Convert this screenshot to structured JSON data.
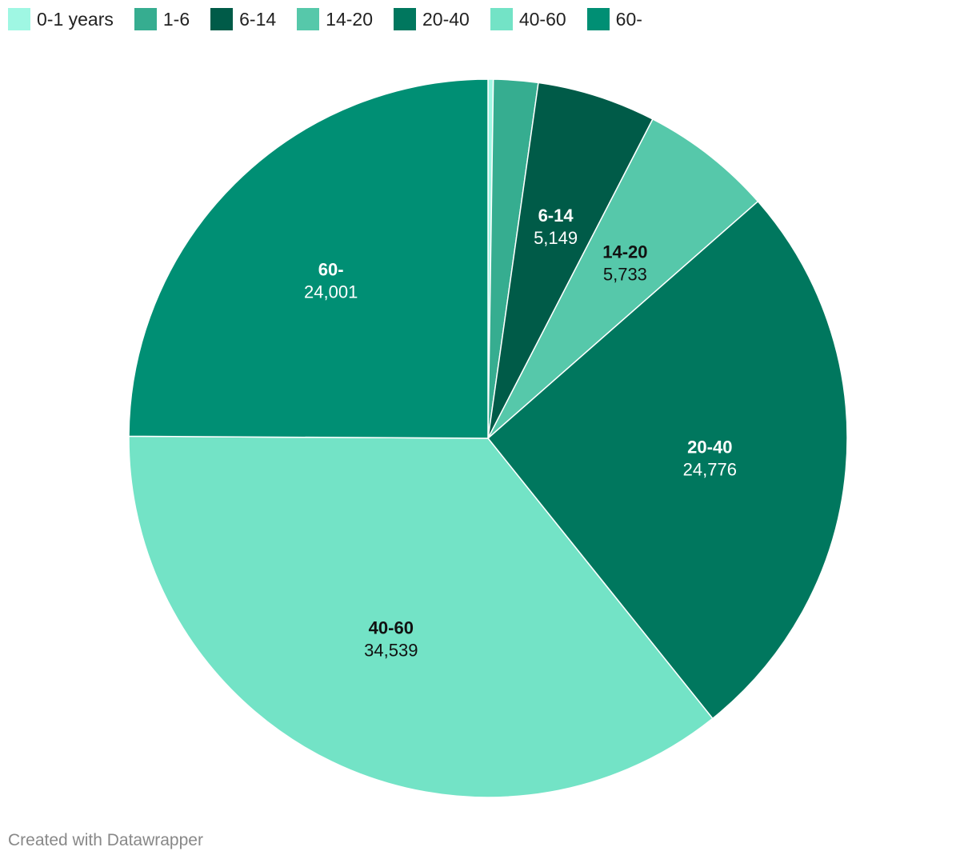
{
  "chart_data": {
    "type": "pie",
    "categories": [
      "0-1 years",
      "1-6",
      "6-14",
      "14-20",
      "20-40",
      "40-60",
      "60-"
    ],
    "values": [
      229,
      1929,
      5149,
      5733,
      24776,
      34539,
      24001
    ],
    "colors": [
      "#9ff7e3",
      "#36ad90",
      "#005b48",
      "#56c8aa",
      "#00775e",
      "#73e3c6",
      "#008f74"
    ],
    "labels": [
      {
        "index": 2,
        "name": "6-14",
        "value": "5,149",
        "text_color": "#ffffff"
      },
      {
        "index": 3,
        "name": "14-20",
        "value": "5,733",
        "text_color": "#111111"
      },
      {
        "index": 4,
        "name": "20-40",
        "value": "24,776",
        "text_color": "#ffffff"
      },
      {
        "index": 5,
        "name": "40-60",
        "value": "34,539",
        "text_color": "#111111"
      },
      {
        "index": 6,
        "name": "60-",
        "value": "24,001",
        "text_color": "#ffffff"
      }
    ],
    "start_angle": "12 o'clock",
    "direction": "clockwise",
    "legend_position": "top-left"
  },
  "footer": {
    "credit": "Created with Datawrapper"
  }
}
